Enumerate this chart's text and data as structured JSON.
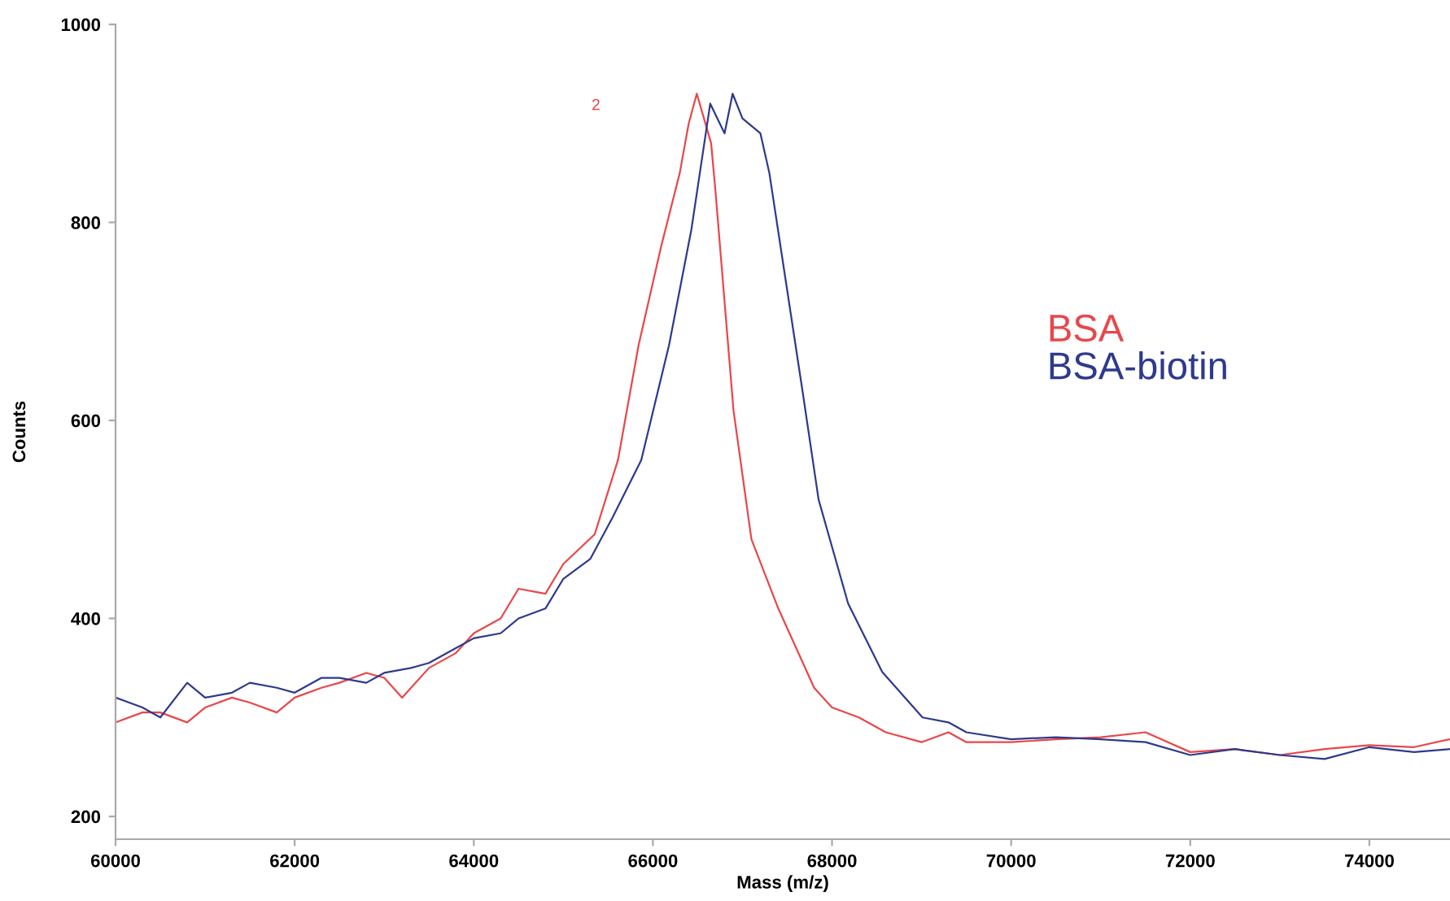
{
  "chart_data": {
    "type": "line",
    "xlabel": "Mass (m/z)",
    "ylabel": "Counts",
    "xlim": [
      60000,
      74900
    ],
    "ylim": [
      177,
      1000
    ],
    "xticks": [
      60000,
      62000,
      64000,
      66000,
      68000,
      70000,
      72000,
      74000
    ],
    "yticks": [
      200,
      400,
      600,
      800,
      1000
    ],
    "grid": false,
    "legend": "right",
    "annotations": [
      "2"
    ],
    "series": [
      {
        "name": "BSA",
        "color": "#e8474a",
        "x": [
          60000,
          60300,
          60500,
          60800,
          61000,
          61300,
          61500,
          61800,
          62000,
          62300,
          62500,
          62800,
          63000,
          63200,
          63500,
          63800,
          64000,
          64300,
          64500,
          64800,
          65000,
          65350,
          65610,
          65840,
          66090,
          66300,
          66400,
          66490,
          66650,
          66700,
          66900,
          67100,
          67400,
          67600,
          67800,
          68000,
          68300,
          68600,
          69000,
          69300,
          69500,
          70000,
          70500,
          71000,
          71500,
          72000,
          72500,
          73000,
          73500,
          74000,
          74500,
          74900
        ],
        "values": [
          295,
          305,
          305,
          295,
          310,
          320,
          315,
          305,
          320,
          330,
          335,
          345,
          340,
          320,
          350,
          365,
          385,
          400,
          430,
          425,
          455,
          485,
          560,
          676,
          775,
          850,
          900,
          930,
          880,
          830,
          610,
          480,
          410,
          370,
          330,
          310,
          300,
          285,
          275,
          285,
          275,
          275,
          278,
          280,
          285,
          265,
          268,
          262,
          268,
          272,
          270,
          278
        ]
      },
      {
        "name": "BSA-biotin",
        "color": "#2e3a8c",
        "x": [
          60000,
          60300,
          60500,
          60800,
          61000,
          61300,
          61500,
          61800,
          62000,
          62300,
          62500,
          62800,
          63000,
          63300,
          63500,
          63800,
          64000,
          64300,
          64500,
          64800,
          65000,
          65300,
          65550,
          65870,
          66180,
          66430,
          66640,
          66800,
          66890,
          67000,
          67200,
          67300,
          67670,
          67850,
          68180,
          68560,
          69010,
          69300,
          69500,
          70000,
          70500,
          71000,
          71500,
          72000,
          72500,
          73000,
          73500,
          74000,
          74500,
          74900
        ],
        "values": [
          320,
          310,
          300,
          335,
          320,
          325,
          335,
          330,
          325,
          340,
          340,
          335,
          345,
          350,
          355,
          370,
          380,
          385,
          400,
          410,
          440,
          460,
          502,
          560,
          676,
          793,
          920,
          890,
          930,
          905,
          890,
          850,
          630,
          520,
          415,
          346,
          300,
          295,
          285,
          278,
          280,
          278,
          275,
          262,
          268,
          262,
          258,
          270,
          265,
          268
        ]
      }
    ]
  }
}
